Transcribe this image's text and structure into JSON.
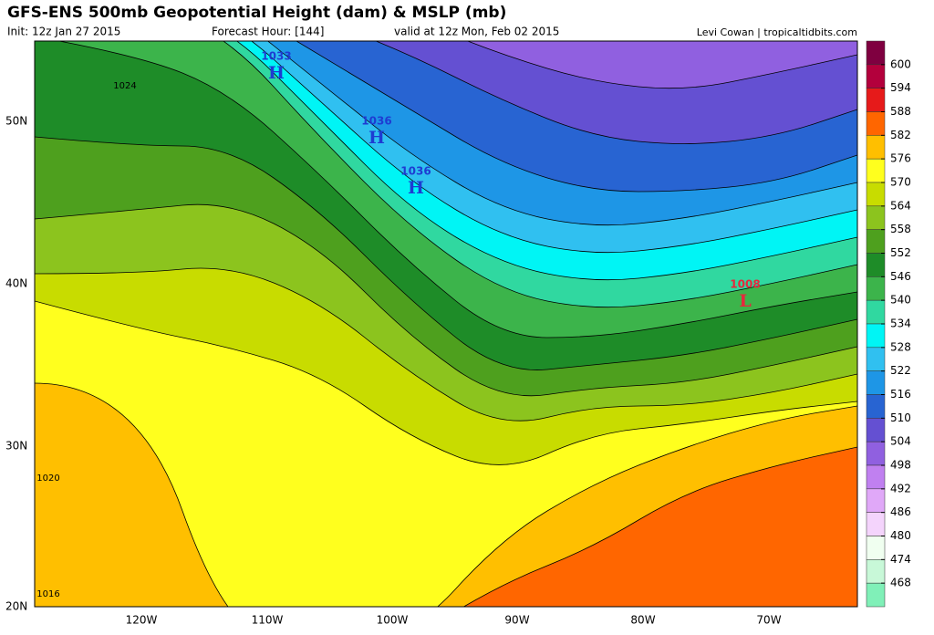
{
  "header": {
    "title": "GFS-ENS 500mb Geopotential Height (dam) & MSLP (mb)",
    "init": "Init: 12z Jan 27 2015",
    "forecast_hour": "Forecast Hour: [144]",
    "valid": "valid at 12z Mon, Feb 02 2015",
    "credit": "Levi Cowan | tropicaltidbits.com"
  },
  "map": {
    "lat_labels": [
      "50N",
      "40N",
      "30N",
      "20N"
    ],
    "lon_labels": [
      "120W",
      "110W",
      "100W",
      "90W",
      "80W",
      "70W"
    ],
    "centers": [
      {
        "pressure": "1033",
        "symbol": "H",
        "color": "#1e3cd2"
      },
      {
        "pressure": "1036",
        "symbol": "H",
        "color": "#1e3cd2"
      },
      {
        "pressure": "1036",
        "symbol": "H",
        "color": "#1e3cd2"
      },
      {
        "pressure": "1008",
        "symbol": "L",
        "color": "#e6283c"
      }
    ],
    "isobar_labels": [
      "1024",
      "1020",
      "1016"
    ]
  },
  "colorbar": {
    "labels": [
      600,
      594,
      588,
      582,
      576,
      570,
      564,
      558,
      552,
      546,
      540,
      534,
      528,
      522,
      516,
      510,
      504,
      498,
      492,
      486,
      480,
      474,
      468
    ],
    "colors": [
      "#7f0040",
      "#b3003c",
      "#e61a1a",
      "#ff6600",
      "#ffbf00",
      "#ffff1e",
      "#c8dc00",
      "#8cc41e",
      "#4ea01e",
      "#1e8c28",
      "#3cb44b",
      "#30d8a0",
      "#00f5f5",
      "#30c0f0",
      "#1e96e6",
      "#2864d2",
      "#6450d2",
      "#9060e0",
      "#c080f0",
      "#e0a8f8",
      "#f4d4fc",
      "#f0fff0",
      "#c8f8d8",
      "#80f0b8"
    ]
  }
}
